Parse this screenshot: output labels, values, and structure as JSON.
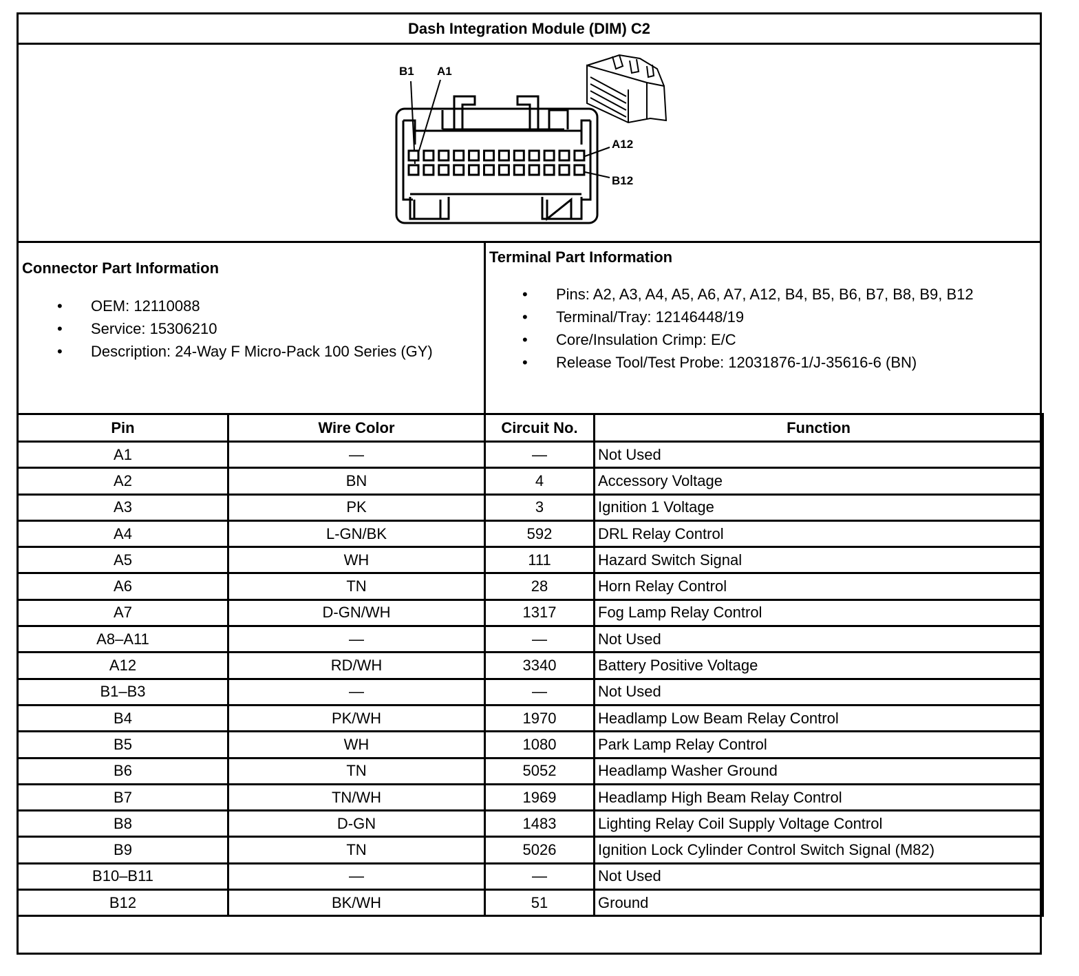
{
  "title": "Dash Integration Module (DIM) C2",
  "diagram": {
    "labels": {
      "b1": "B1",
      "a1": "A1",
      "a12": "A12",
      "b12": "B12"
    }
  },
  "connector_info": {
    "heading": "Connector Part Information",
    "items": [
      "OEM: 12110088",
      "Service: 15306210",
      "Description: 24-Way F Micro-Pack 100 Series (GY)"
    ]
  },
  "terminal_info": {
    "heading": "Terminal Part Information",
    "items": [
      "Pins: A2, A3, A4, A5, A6, A7, A12, B4, B5, B6, B7, B8, B9, B12",
      "Terminal/Tray: 12146448/19",
      "Core/Insulation Crimp: E/C",
      "Release Tool/Test Probe: 12031876-1/J-35616-6 (BN)"
    ]
  },
  "table": {
    "headers": [
      "Pin",
      "Wire Color",
      "Circuit No.",
      "Function"
    ],
    "rows": [
      [
        "A1",
        "—",
        "—",
        "Not Used"
      ],
      [
        "A2",
        "BN",
        "4",
        "Accessory Voltage"
      ],
      [
        "A3",
        "PK",
        "3",
        "Ignition 1 Voltage"
      ],
      [
        "A4",
        "L-GN/BK",
        "592",
        "DRL Relay Control"
      ],
      [
        "A5",
        "WH",
        "111",
        "Hazard Switch Signal"
      ],
      [
        "A6",
        "TN",
        "28",
        "Horn Relay Control"
      ],
      [
        "A7",
        "D-GN/WH",
        "1317",
        "Fog Lamp Relay Control"
      ],
      [
        "A8–A11",
        "—",
        "—",
        "Not Used"
      ],
      [
        "A12",
        "RD/WH",
        "3340",
        "Battery Positive Voltage"
      ],
      [
        "B1–B3",
        "—",
        "—",
        "Not Used"
      ],
      [
        "B4",
        "PK/WH",
        "1970",
        "Headlamp Low Beam Relay Control"
      ],
      [
        "B5",
        "WH",
        "1080",
        "Park Lamp Relay Control"
      ],
      [
        "B6",
        "TN",
        "5052",
        "Headlamp Washer Ground"
      ],
      [
        "B7",
        "TN/WH",
        "1969",
        "Headlamp High Beam Relay Control"
      ],
      [
        "B8",
        "D-GN",
        "1483",
        "Lighting Relay Coil Supply Voltage Control"
      ],
      [
        "B9",
        "TN",
        "5026",
        "Ignition Lock Cylinder Control Switch Signal (M82)"
      ],
      [
        "B10–B11",
        "—",
        "—",
        "Not Used"
      ],
      [
        "B12",
        "BK/WH",
        "51",
        "Ground"
      ]
    ]
  }
}
